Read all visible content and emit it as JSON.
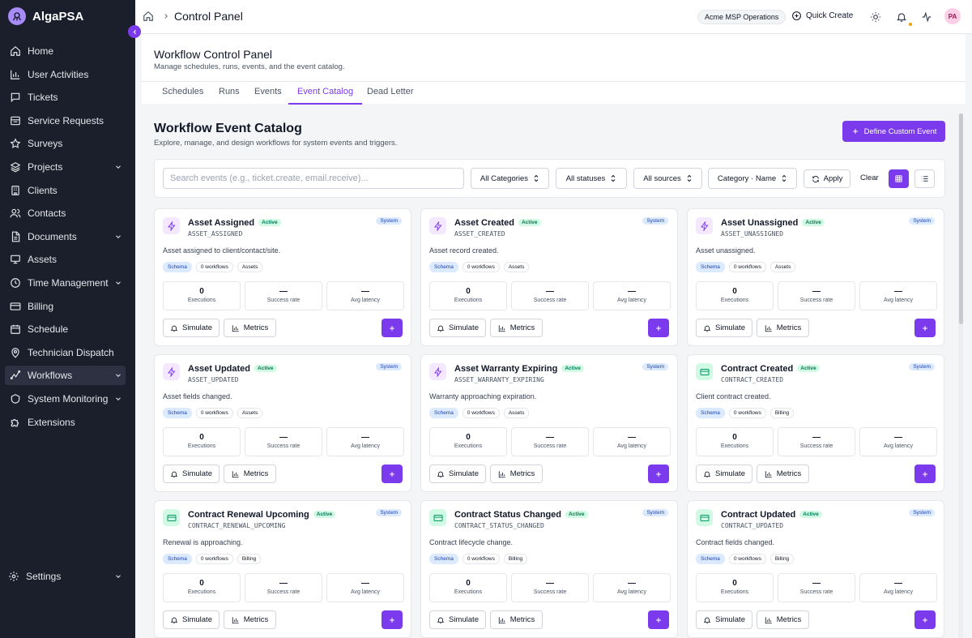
{
  "brand": {
    "name": "AlgaPSA"
  },
  "sidebar": {
    "items": [
      {
        "label": "Home",
        "icon": "home-icon"
      },
      {
        "label": "User Activities",
        "icon": "bar-chart-icon"
      },
      {
        "label": "Tickets",
        "icon": "message-square-icon"
      },
      {
        "label": "Service Requests",
        "icon": "clipboard-icon"
      },
      {
        "label": "Surveys",
        "icon": "star-icon"
      },
      {
        "label": "Projects",
        "icon": "layers-icon"
      },
      {
        "label": "Clients",
        "icon": "building-icon"
      },
      {
        "label": "Contacts",
        "icon": "users-icon"
      },
      {
        "label": "Documents",
        "icon": "file-icon"
      },
      {
        "label": "Assets",
        "icon": "monitor-icon"
      },
      {
        "label": "Time Management",
        "icon": "clock-icon"
      },
      {
        "label": "Billing",
        "icon": "credit-card-icon"
      },
      {
        "label": "Schedule",
        "icon": "calendar-icon"
      },
      {
        "label": "Technician Dispatch",
        "icon": "map-pin-icon"
      },
      {
        "label": "Workflows",
        "icon": "workflow-icon"
      },
      {
        "label": "System Monitoring",
        "icon": "activity-icon"
      },
      {
        "label": "Extensions",
        "icon": "puzzle-icon"
      }
    ],
    "settings": "Settings"
  },
  "topbar": {
    "title": "Control Panel",
    "tenant": "Acme MSP Operations",
    "quick_create": "Quick Create",
    "avatar": "PA"
  },
  "header": {
    "title": "Workflow Control Panel",
    "subtitle": "Manage schedules, runs, events, and the event catalog.",
    "tabs": [
      "Schedules",
      "Runs",
      "Events",
      "Event Catalog",
      "Dead Letter"
    ]
  },
  "catalog": {
    "title": "Workflow Event Catalog",
    "subtitle": "Explore, manage, and design workflows for system events and triggers.",
    "define_button": "Define Custom Event",
    "search_placeholder": "Search events (e.g., ticket.create, email.receive)...",
    "filters": {
      "categories": "All Categories",
      "statuses": "All statuses",
      "sources": "All sources",
      "sort": "Category · Name"
    },
    "apply": "Apply",
    "clear": "Clear"
  },
  "card_labels": {
    "active": "Active",
    "system": "System",
    "schema": "Schema",
    "workflows": "0 workflows",
    "executions": "Executions",
    "success_rate": "Success rate",
    "avg_latency": "Avg latency",
    "simulate": "Simulate",
    "metrics": "Metrics"
  },
  "events": [
    {
      "name": "Asset Assigned",
      "code": "ASSET_ASSIGNED",
      "description": "Asset assigned to client/contact/site.",
      "category": "Assets",
      "executions": "0",
      "success_rate": "—",
      "avg_latency": "—"
    },
    {
      "name": "Asset Created",
      "code": "ASSET_CREATED",
      "description": "Asset record created.",
      "category": "Assets",
      "executions": "0",
      "success_rate": "—",
      "avg_latency": "—"
    },
    {
      "name": "Asset Unassigned",
      "code": "ASSET_UNASSIGNED",
      "description": "Asset unassigned.",
      "category": "Assets",
      "executions": "0",
      "success_rate": "—",
      "avg_latency": "—"
    },
    {
      "name": "Asset Updated",
      "code": "ASSET_UPDATED",
      "description": "Asset fields changed.",
      "category": "Assets",
      "executions": "0",
      "success_rate": "—",
      "avg_latency": "—"
    },
    {
      "name": "Asset Warranty Expiring",
      "code": "ASSET_WARRANTY_EXPIRING",
      "description": "Warranty approaching expiration.",
      "category": "Assets",
      "executions": "0",
      "success_rate": "—",
      "avg_latency": "—"
    },
    {
      "name": "Contract Created",
      "code": "CONTRACT_CREATED",
      "description": "Client contract created.",
      "category": "Billing",
      "executions": "0",
      "success_rate": "—",
      "avg_latency": "—"
    },
    {
      "name": "Contract Renewal Upcoming",
      "code": "CONTRACT_RENEWAL_UPCOMING",
      "description": "Renewal is approaching.",
      "category": "Billing",
      "executions": "0",
      "success_rate": "—",
      "avg_latency": "—"
    },
    {
      "name": "Contract Status Changed",
      "code": "CONTRACT_STATUS_CHANGED",
      "description": "Contract lifecycle change.",
      "category": "Billing",
      "executions": "0",
      "success_rate": "—",
      "avg_latency": "—"
    },
    {
      "name": "Contract Updated",
      "code": "CONTRACT_UPDATED",
      "description": "Contract fields changed.",
      "category": "Billing",
      "executions": "0",
      "success_rate": "—",
      "avg_latency": "—"
    }
  ]
}
